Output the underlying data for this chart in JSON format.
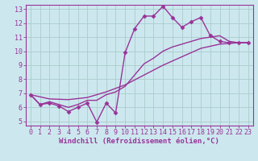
{
  "background_color": "#cce8ee",
  "grid_color": "#aacccc",
  "line_color": "#993399",
  "marker": "D",
  "markersize": 2.5,
  "linewidth": 1.0,
  "xlim": [
    -0.5,
    23.5
  ],
  "ylim": [
    4.7,
    13.3
  ],
  "xlabel": "Windchill (Refroidissement éolien,°C)",
  "xlabel_fontsize": 6.5,
  "xtick_labels": [
    "0",
    "1",
    "2",
    "3",
    "4",
    "5",
    "6",
    "7",
    "8",
    "9",
    "10",
    "11",
    "12",
    "13",
    "14",
    "15",
    "16",
    "17",
    "18",
    "19",
    "20",
    "21",
    "22",
    "23"
  ],
  "ytick_values": [
    5,
    6,
    7,
    8,
    9,
    10,
    11,
    12,
    13
  ],
  "tick_fontsize": 6.0,
  "series1": [
    [
      0,
      6.9
    ],
    [
      1,
      6.2
    ],
    [
      2,
      6.3
    ],
    [
      3,
      6.1
    ],
    [
      4,
      5.7
    ],
    [
      5,
      6.0
    ],
    [
      6,
      6.3
    ],
    [
      7,
      4.95
    ],
    [
      8,
      6.3
    ],
    [
      9,
      5.6
    ],
    [
      10,
      9.9
    ],
    [
      11,
      11.6
    ],
    [
      12,
      12.5
    ],
    [
      13,
      12.5
    ],
    [
      14,
      13.2
    ],
    [
      15,
      12.4
    ],
    [
      16,
      11.7
    ],
    [
      17,
      12.1
    ],
    [
      18,
      12.4
    ],
    [
      19,
      11.1
    ],
    [
      20,
      10.7
    ],
    [
      21,
      10.6
    ],
    [
      22,
      10.6
    ],
    [
      23,
      10.6
    ]
  ],
  "series2": [
    [
      0,
      6.9
    ],
    [
      1,
      6.2
    ],
    [
      2,
      6.4
    ],
    [
      3,
      6.2
    ],
    [
      4,
      6.0
    ],
    [
      5,
      6.2
    ],
    [
      6,
      6.5
    ],
    [
      7,
      6.5
    ],
    [
      8,
      6.9
    ],
    [
      9,
      7.1
    ],
    [
      10,
      7.5
    ],
    [
      11,
      8.3
    ],
    [
      12,
      9.1
    ],
    [
      13,
      9.5
    ],
    [
      14,
      10.0
    ],
    [
      15,
      10.3
    ],
    [
      16,
      10.5
    ],
    [
      17,
      10.7
    ],
    [
      18,
      10.9
    ],
    [
      19,
      11.0
    ],
    [
      20,
      11.1
    ],
    [
      21,
      10.7
    ],
    [
      22,
      10.6
    ],
    [
      23,
      10.6
    ]
  ],
  "series3": [
    [
      0,
      6.9
    ],
    [
      2,
      6.6
    ],
    [
      4,
      6.55
    ],
    [
      6,
      6.7
    ],
    [
      8,
      7.1
    ],
    [
      10,
      7.6
    ],
    [
      12,
      8.3
    ],
    [
      14,
      9.0
    ],
    [
      16,
      9.6
    ],
    [
      18,
      10.2
    ],
    [
      20,
      10.5
    ],
    [
      22,
      10.6
    ],
    [
      23,
      10.6
    ]
  ]
}
